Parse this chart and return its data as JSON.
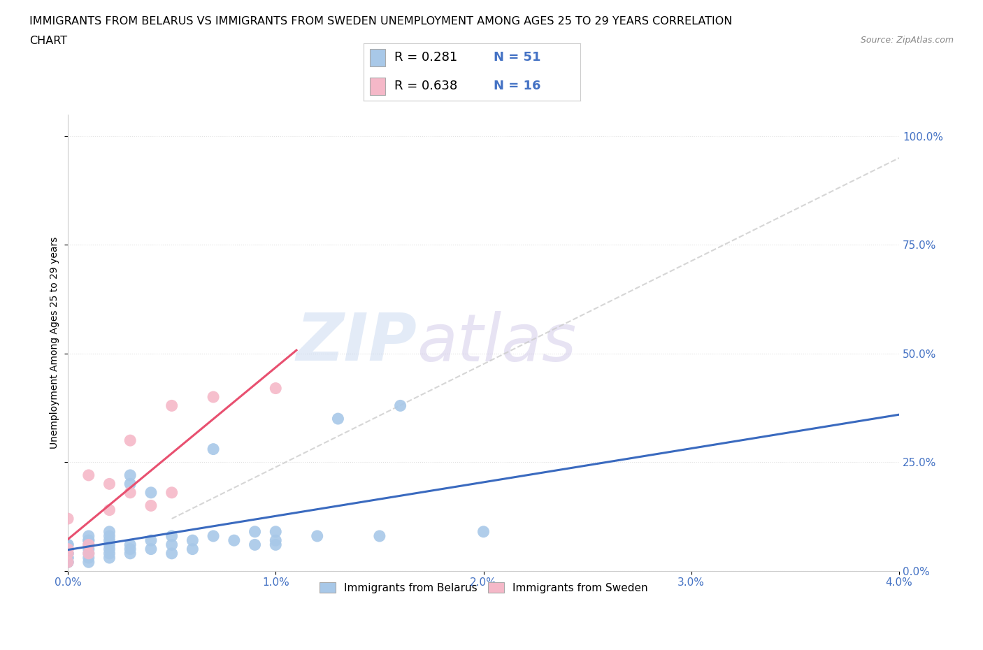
{
  "title_line1": "IMMIGRANTS FROM BELARUS VS IMMIGRANTS FROM SWEDEN UNEMPLOYMENT AMONG AGES 25 TO 29 YEARS CORRELATION",
  "title_line2": "CHART",
  "source_text": "Source: ZipAtlas.com",
  "ylabel": "Unemployment Among Ages 25 to 29 years",
  "xlim": [
    0.0,
    0.04
  ],
  "ylim": [
    0.0,
    1.05
  ],
  "xticks": [
    0.0,
    0.01,
    0.02,
    0.03,
    0.04
  ],
  "xtick_labels": [
    "0.0%",
    "1.0%",
    "2.0%",
    "3.0%",
    "4.0%"
  ],
  "ytick_labels": [
    "0.0%",
    "25.0%",
    "50.0%",
    "75.0%",
    "100.0%"
  ],
  "yticks": [
    0.0,
    0.25,
    0.5,
    0.75,
    1.0
  ],
  "belarus_color": "#a8c8e8",
  "sweden_color": "#f5b8c8",
  "belarus_line_color": "#3a6abf",
  "sweden_line_color": "#e85070",
  "legend_r_belarus": "0.281",
  "legend_n_belarus": "51",
  "legend_r_sweden": "0.638",
  "legend_n_sweden": "16",
  "watermark_zip": "ZIP",
  "watermark_atlas": "atlas",
  "legend_label_belarus": "Immigrants from Belarus",
  "legend_label_sweden": "Immigrants from Sweden",
  "belarus_x": [
    0.0,
    0.0,
    0.0,
    0.0,
    0.0,
    0.0,
    0.0,
    0.0,
    0.0,
    0.0,
    0.001,
    0.001,
    0.001,
    0.001,
    0.001,
    0.001,
    0.001,
    0.001,
    0.002,
    0.002,
    0.002,
    0.002,
    0.002,
    0.002,
    0.002,
    0.003,
    0.003,
    0.003,
    0.003,
    0.003,
    0.004,
    0.004,
    0.004,
    0.005,
    0.005,
    0.005,
    0.006,
    0.006,
    0.007,
    0.007,
    0.008,
    0.009,
    0.009,
    0.01,
    0.01,
    0.01,
    0.012,
    0.013,
    0.015,
    0.016,
    0.02
  ],
  "belarus_y": [
    0.02,
    0.02,
    0.03,
    0.03,
    0.04,
    0.04,
    0.05,
    0.05,
    0.06,
    0.06,
    0.02,
    0.03,
    0.04,
    0.05,
    0.06,
    0.07,
    0.07,
    0.08,
    0.03,
    0.04,
    0.05,
    0.06,
    0.07,
    0.08,
    0.09,
    0.04,
    0.05,
    0.06,
    0.2,
    0.22,
    0.05,
    0.07,
    0.18,
    0.04,
    0.06,
    0.08,
    0.05,
    0.07,
    0.08,
    0.28,
    0.07,
    0.06,
    0.09,
    0.06,
    0.07,
    0.09,
    0.08,
    0.35,
    0.08,
    0.38,
    0.09
  ],
  "sweden_x": [
    0.0,
    0.0,
    0.0,
    0.0,
    0.001,
    0.001,
    0.001,
    0.002,
    0.002,
    0.003,
    0.003,
    0.004,
    0.005,
    0.005,
    0.007,
    0.01
  ],
  "sweden_y": [
    0.02,
    0.04,
    0.05,
    0.12,
    0.04,
    0.06,
    0.22,
    0.14,
    0.2,
    0.18,
    0.3,
    0.15,
    0.18,
    0.38,
    0.4,
    0.42
  ],
  "grid_color": "#e0e0e0",
  "bg_color": "#ffffff",
  "title_fontsize": 11.5,
  "axis_label_fontsize": 10,
  "tick_fontsize": 11
}
